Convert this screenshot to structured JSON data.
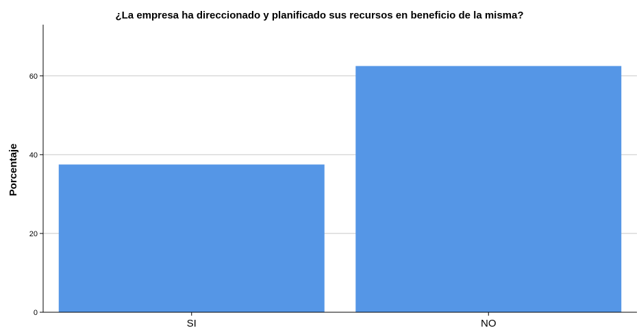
{
  "chart_data": {
    "type": "bar",
    "title": "¿La empresa ha direccionado y planificado sus recursos en beneficio de la misma?",
    "xlabel": "",
    "ylabel": "Porcentaje",
    "categories": [
      "SI",
      "NO"
    ],
    "values": [
      37.5,
      62.5
    ],
    "ylim": [
      0,
      73
    ],
    "yticks": [
      0,
      20,
      40,
      60
    ],
    "grid": true,
    "bar_color": "#5596E6",
    "grid_color": "#C8C8C8",
    "axis_color": "#000000"
  }
}
